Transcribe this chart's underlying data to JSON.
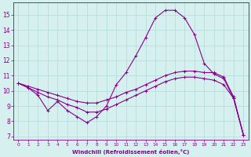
{
  "xlabel": "Windchill (Refroidissement éolien,°C)",
  "bg_color": "#d6f0f0",
  "line_color": "#880088",
  "grid_color": "#b8dede",
  "xlim": [
    -0.5,
    23.5
  ],
  "ylim": [
    6.8,
    15.8
  ],
  "yticks": [
    7,
    8,
    9,
    10,
    11,
    12,
    13,
    14,
    15
  ],
  "xticks": [
    0,
    1,
    2,
    3,
    4,
    5,
    6,
    7,
    8,
    9,
    10,
    11,
    12,
    13,
    14,
    15,
    16,
    17,
    18,
    19,
    20,
    21,
    22,
    23
  ],
  "series": [
    [
      10.5,
      10.2,
      9.7,
      8.7,
      9.3,
      8.7,
      8.3,
      7.9,
      8.3,
      9.0,
      10.4,
      11.2,
      12.3,
      13.5,
      14.8,
      15.3,
      15.3,
      14.8,
      13.7,
      11.8,
      11.1,
      10.8,
      9.5,
      7.1
    ],
    [
      10.5,
      10.2,
      9.9,
      9.6,
      9.4,
      9.1,
      8.9,
      8.6,
      8.6,
      8.8,
      9.1,
      9.4,
      9.7,
      10.0,
      10.3,
      10.6,
      10.8,
      10.9,
      10.9,
      10.8,
      10.7,
      10.4,
      9.5,
      7.1
    ],
    [
      10.5,
      10.3,
      10.1,
      9.9,
      9.7,
      9.5,
      9.3,
      9.2,
      9.2,
      9.4,
      9.6,
      9.9,
      10.1,
      10.4,
      10.7,
      11.0,
      11.2,
      11.3,
      11.3,
      11.2,
      11.2,
      10.9,
      9.6,
      7.1
    ]
  ]
}
